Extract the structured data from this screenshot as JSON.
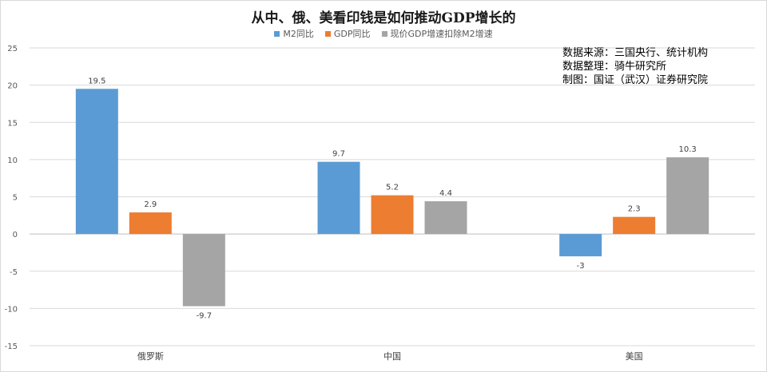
{
  "chart_data": {
    "type": "bar",
    "title": "从中、俄、美看印钱是如何推动GDP增长的",
    "categories": [
      "俄罗斯",
      "中国",
      "美国"
    ],
    "series": [
      {
        "name": "M2同比",
        "values": [
          19.5,
          9.7,
          -3
        ],
        "labels": [
          "19.5",
          "9.7",
          "-3"
        ],
        "color": "#5b9bd5"
      },
      {
        "name": "GDP同比",
        "values": [
          2.9,
          5.2,
          2.3
        ],
        "labels": [
          "2.9",
          "5.2",
          "2.3"
        ],
        "color": "#ed7d31"
      },
      {
        "name": "现价GDP增速扣除M2增速",
        "values": [
          -9.7,
          4.4,
          10.3
        ],
        "labels": [
          "-9.7",
          "4.4",
          "10.3"
        ],
        "color": "#a5a5a5"
      }
    ],
    "ylim": [
      -15,
      25
    ],
    "yticks": [
      25,
      20,
      15,
      10,
      5,
      0,
      -5,
      -10,
      -15
    ],
    "ytick_labels": [
      "25",
      "20",
      "15",
      "10",
      "5",
      "0",
      "-5",
      "-10",
      "-15"
    ],
    "grid": true,
    "legend_position": "top"
  },
  "annotations": {
    "source_lines": [
      "数据来源：三国央行、统计机构",
      "数据整理：骑牛研究所",
      "制图：国证（武汉）证券研究院"
    ]
  }
}
